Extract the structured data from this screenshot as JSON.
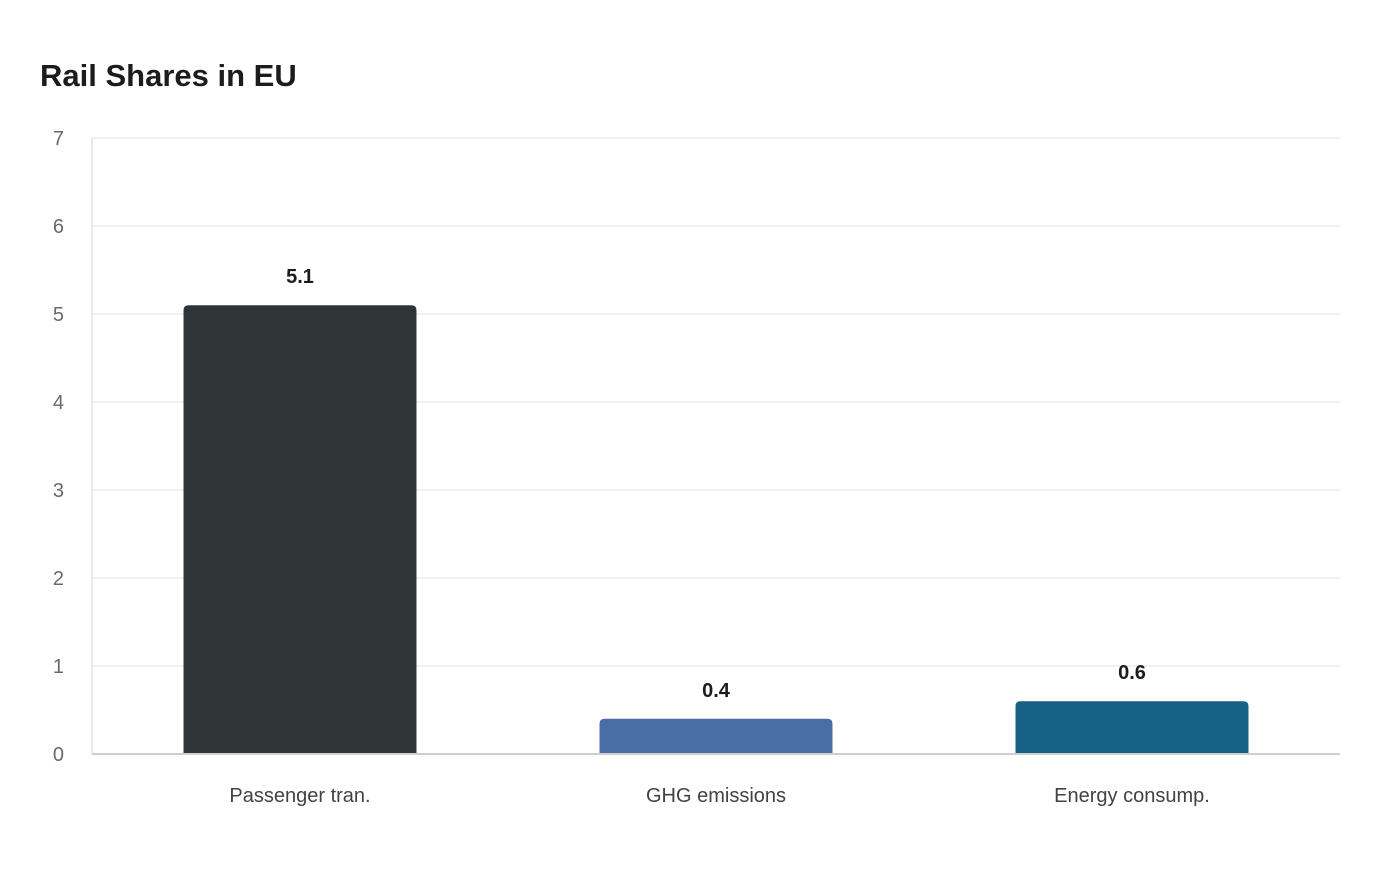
{
  "chart_data": {
    "type": "bar",
    "title": "Rail Shares in EU",
    "categories": [
      "Passenger tran.",
      "GHG emissions",
      "Energy consump."
    ],
    "values": [
      5.1,
      0.4,
      0.6
    ],
    "value_labels": [
      "5.1",
      "0.4",
      "0.6"
    ],
    "colors": [
      "#2d3537",
      "#4a6da5",
      "#176086"
    ],
    "ylim": [
      0,
      7
    ],
    "yticks": [
      "0",
      "1",
      "2",
      "3",
      "4",
      "5",
      "6",
      "7"
    ],
    "xlabel": "",
    "ylabel": "",
    "grid": true,
    "legend": "none"
  }
}
